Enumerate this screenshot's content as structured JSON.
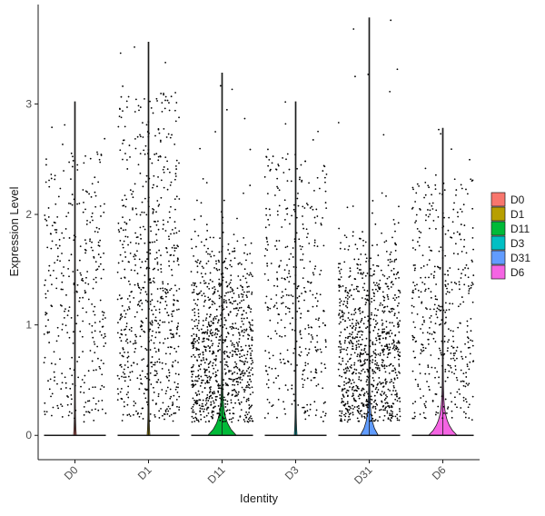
{
  "chart_data": {
    "type": "violin",
    "xlabel": "Identity",
    "ylabel": "Expression Level",
    "ylim": [
      -0.22,
      3.9
    ],
    "yticks": [
      0,
      1,
      2,
      3
    ],
    "grid": false,
    "legend_position": "right",
    "categories": [
      "D0",
      "D1",
      "D11",
      "D3",
      "D31",
      "D6"
    ],
    "series": [
      {
        "name": "D0",
        "color": "#F8766D",
        "max": 3.02,
        "violin_peak_width": 0.03,
        "point_density": 0.38
      },
      {
        "name": "D1",
        "color": "#B79F00",
        "max": 3.56,
        "violin_peak_width": 0.03,
        "point_density": 0.75
      },
      {
        "name": "D11",
        "color": "#00BA38",
        "max": 3.28,
        "violin_peak_width": 0.42,
        "point_density": 1.0
      },
      {
        "name": "D3",
        "color": "#00BFC4",
        "max": 3.02,
        "violin_peak_width": 0.03,
        "point_density": 0.42
      },
      {
        "name": "D31",
        "color": "#619CFF",
        "max": 3.78,
        "violin_peak_width": 0.26,
        "point_density": 1.0
      },
      {
        "name": "D6",
        "color": "#F564E3",
        "max": 2.78,
        "violin_peak_width": 0.42,
        "point_density": 0.48
      }
    ]
  }
}
